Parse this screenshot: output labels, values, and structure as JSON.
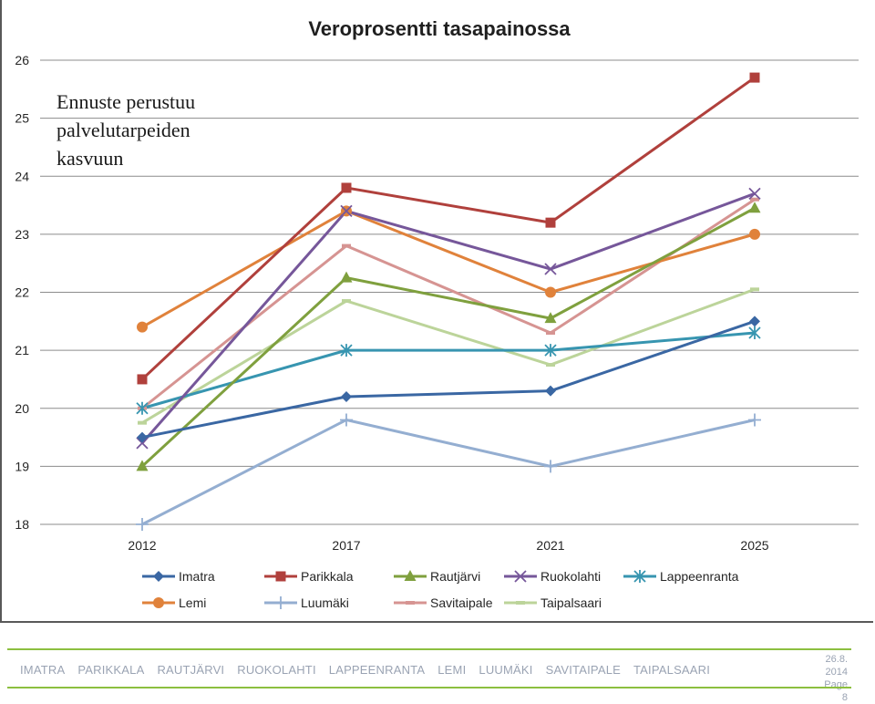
{
  "footer": {
    "nav": [
      "IMATRA",
      "PARIKKALA",
      "RAUTJÄRVI",
      "RUOKOLAHTI",
      "LAPPEENRANTA",
      "LEMI",
      "LUUMÄKI",
      "SAVITAIPALE",
      "TAIPALSAARI"
    ],
    "date_line1": "26.8.",
    "date_line2": "2014",
    "page_label": "Page",
    "page_number": "8"
  },
  "chart_data": {
    "type": "line",
    "title": "Veroprosentti tasapainossa",
    "annotation": [
      "Ennuste perustuu",
      "palvelutarpeiden",
      "kasvuun"
    ],
    "categories": [
      "2012",
      "2017",
      "2021",
      "2025"
    ],
    "ylim": [
      18,
      26
    ],
    "yticks": [
      18,
      19,
      20,
      21,
      22,
      23,
      24,
      25,
      26
    ],
    "grid": true,
    "legend_position": "bottom",
    "series": [
      {
        "name": "Imatra",
        "values": [
          19.5,
          20.2,
          20.3,
          21.5
        ],
        "color": "#3a67a3",
        "marker": "diamond"
      },
      {
        "name": "Parikkala",
        "values": [
          20.5,
          23.8,
          23.2,
          25.7
        ],
        "color": "#b0403c",
        "marker": "square"
      },
      {
        "name": "Rautjärvi",
        "values": [
          19.0,
          22.25,
          21.55,
          23.45
        ],
        "color": "#7fa03e",
        "marker": "triangle"
      },
      {
        "name": "Ruokolahti",
        "values": [
          19.4,
          23.4,
          22.4,
          23.7
        ],
        "color": "#76579a",
        "marker": "x"
      },
      {
        "name": "Lappeenranta",
        "values": [
          20.0,
          21.0,
          21.0,
          21.3
        ],
        "color": "#3795b0",
        "marker": "star"
      },
      {
        "name": "Lemi",
        "values": [
          21.4,
          23.4,
          22.0,
          23.0
        ],
        "color": "#e0823b",
        "marker": "circle"
      },
      {
        "name": "Luumäki",
        "values": [
          18.0,
          19.8,
          19.0,
          19.8
        ],
        "color": "#94aed1",
        "marker": "plus"
      },
      {
        "name": "Savitaipale",
        "values": [
          20.0,
          22.8,
          21.3,
          23.6
        ],
        "color": "#d69492",
        "marker": "dash"
      },
      {
        "name": "Taipalsaari",
        "values": [
          19.75,
          21.85,
          20.75,
          22.05
        ],
        "color": "#bcd49a",
        "marker": "dash"
      }
    ]
  }
}
